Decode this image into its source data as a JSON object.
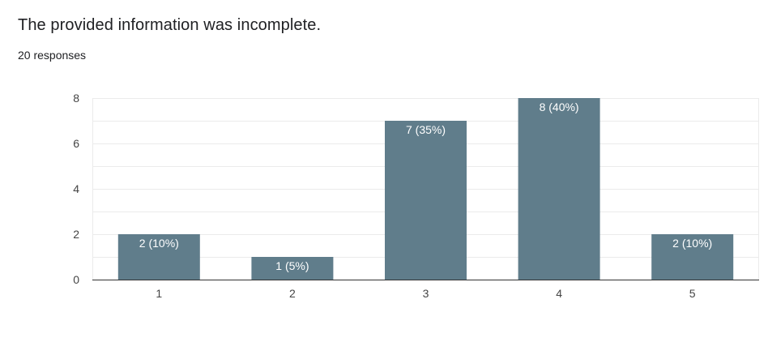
{
  "question": {
    "title": "The provided information was incomplete.",
    "responses": "20 responses"
  },
  "colors": {
    "bar": "#607d8b",
    "grid": "#ebebeb",
    "axis": "#333333"
  },
  "chart_data": {
    "type": "bar",
    "categories": [
      "1",
      "2",
      "3",
      "4",
      "5"
    ],
    "values": [
      2,
      1,
      7,
      8,
      2
    ],
    "data_labels": [
      "2 (10%)",
      "1 (5%)",
      "7 (35%)",
      "8 (40%)",
      "2 (10%)"
    ],
    "yticks": [
      0,
      2,
      4,
      6,
      8
    ],
    "ylim": [
      0,
      8
    ],
    "title": "",
    "xlabel": "",
    "ylabel": "",
    "grid": true,
    "legend": "none"
  }
}
